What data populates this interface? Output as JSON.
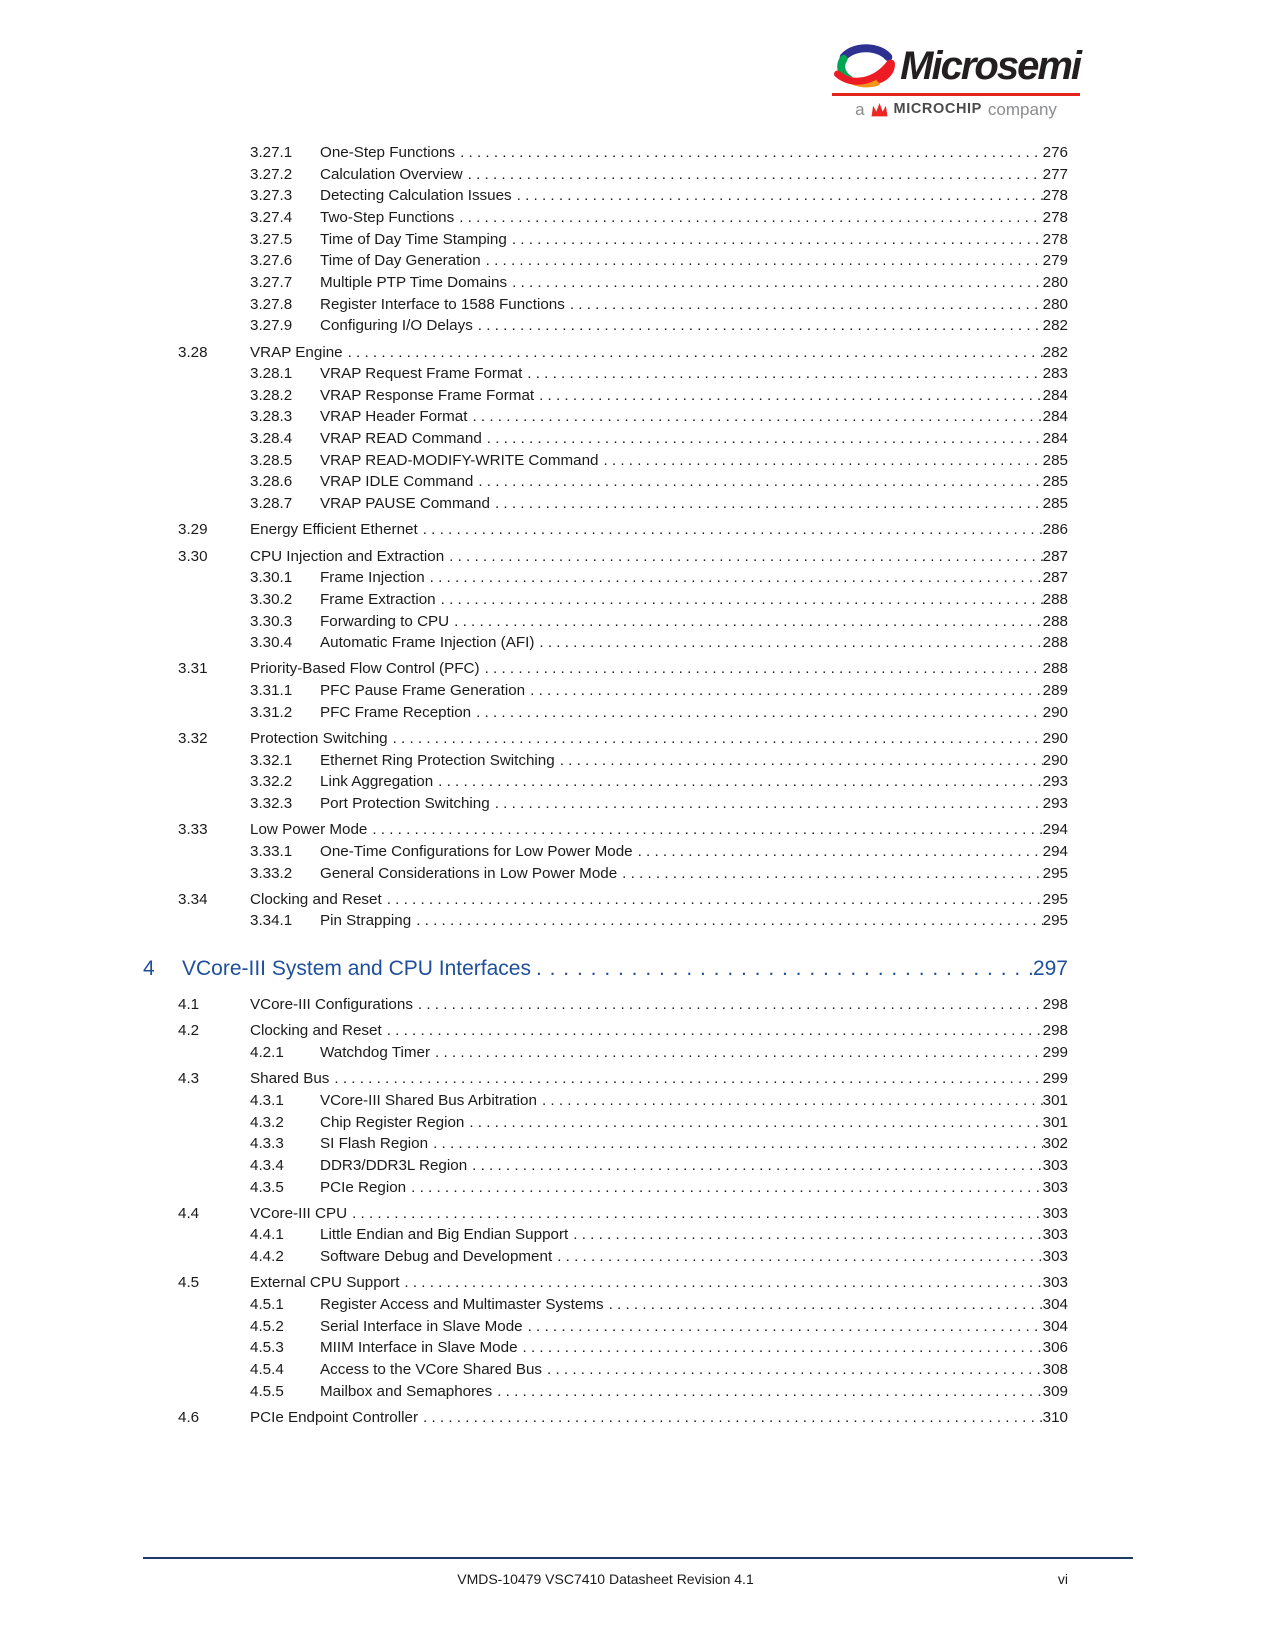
{
  "header": {
    "brand": "Microsemi",
    "tagline_prefix": "a",
    "tagline_brand": "MICROCHIP",
    "tagline_suffix": "company",
    "accent_red": "#E1251B",
    "heading_blue": "#1E4F9C"
  },
  "toc": {
    "entries": [
      {
        "level": 3,
        "number": "3.27.1",
        "title": "One-Step Functions",
        "page": "276"
      },
      {
        "level": 3,
        "number": "3.27.2",
        "title": "Calculation Overview",
        "page": "277"
      },
      {
        "level": 3,
        "number": "3.27.3",
        "title": "Detecting Calculation Issues",
        "page": "278"
      },
      {
        "level": 3,
        "number": "3.27.4",
        "title": "Two-Step Functions",
        "page": "278"
      },
      {
        "level": 3,
        "number": "3.27.5",
        "title": "Time of Day Time Stamping",
        "page": "278"
      },
      {
        "level": 3,
        "number": "3.27.6",
        "title": "Time of Day Generation",
        "page": "279"
      },
      {
        "level": 3,
        "number": "3.27.7",
        "title": "Multiple PTP Time Domains",
        "page": "280"
      },
      {
        "level": 3,
        "number": "3.27.8",
        "title": "Register Interface to 1588 Functions",
        "page": "280"
      },
      {
        "level": 3,
        "number": "3.27.9",
        "title": "Configuring I/O Delays",
        "page": "282"
      },
      {
        "level": 2,
        "number": "3.28",
        "title": "VRAP Engine",
        "page": "282"
      },
      {
        "level": 3,
        "number": "3.28.1",
        "title": "VRAP Request Frame Format",
        "page": "283"
      },
      {
        "level": 3,
        "number": "3.28.2",
        "title": "VRAP Response Frame Format",
        "page": "284"
      },
      {
        "level": 3,
        "number": "3.28.3",
        "title": "VRAP Header Format",
        "page": "284"
      },
      {
        "level": 3,
        "number": "3.28.4",
        "title": "VRAP READ Command",
        "page": "284"
      },
      {
        "level": 3,
        "number": "3.28.5",
        "title": "VRAP READ-MODIFY-WRITE Command",
        "page": "285"
      },
      {
        "level": 3,
        "number": "3.28.6",
        "title": "VRAP IDLE Command",
        "page": "285"
      },
      {
        "level": 3,
        "number": "3.28.7",
        "title": "VRAP PAUSE Command",
        "page": "285"
      },
      {
        "level": 2,
        "number": "3.29",
        "title": "Energy Efficient Ethernet",
        "page": "286"
      },
      {
        "level": 2,
        "number": "3.30",
        "title": "CPU Injection and Extraction",
        "page": "287"
      },
      {
        "level": 3,
        "number": "3.30.1",
        "title": "Frame Injection",
        "page": "287"
      },
      {
        "level": 3,
        "number": "3.30.2",
        "title": "Frame Extraction",
        "page": "288"
      },
      {
        "level": 3,
        "number": "3.30.3",
        "title": "Forwarding to CPU",
        "page": "288"
      },
      {
        "level": 3,
        "number": "3.30.4",
        "title": "Automatic Frame Injection (AFI)",
        "page": "288"
      },
      {
        "level": 2,
        "number": "3.31",
        "title": "Priority-Based Flow Control (PFC)",
        "page": "288"
      },
      {
        "level": 3,
        "number": "3.31.1",
        "title": "PFC Pause Frame Generation",
        "page": "289"
      },
      {
        "level": 3,
        "number": "3.31.2",
        "title": "PFC Frame Reception",
        "page": "290"
      },
      {
        "level": 2,
        "number": "3.32",
        "title": "Protection Switching",
        "page": "290"
      },
      {
        "level": 3,
        "number": "3.32.1",
        "title": "Ethernet Ring Protection Switching",
        "page": "290"
      },
      {
        "level": 3,
        "number": "3.32.2",
        "title": "Link Aggregation",
        "page": "293"
      },
      {
        "level": 3,
        "number": "3.32.3",
        "title": "Port Protection Switching",
        "page": "293"
      },
      {
        "level": 2,
        "number": "3.33",
        "title": "Low Power Mode",
        "page": "294"
      },
      {
        "level": 3,
        "number": "3.33.1",
        "title": "One-Time Configurations for Low Power Mode",
        "page": "294"
      },
      {
        "level": 3,
        "number": "3.33.2",
        "title": "General Considerations in Low Power Mode",
        "page": "295"
      },
      {
        "level": 2,
        "number": "3.34",
        "title": "Clocking and Reset",
        "page": "295"
      },
      {
        "level": 3,
        "number": "3.34.1",
        "title": "Pin Strapping",
        "page": "295"
      },
      {
        "level": 1,
        "number": "4",
        "title": "VCore-III System and CPU Interfaces",
        "page": "297"
      },
      {
        "level": 2,
        "number": "4.1",
        "title": "VCore-III Configurations",
        "page": "298"
      },
      {
        "level": 2,
        "number": "4.2",
        "title": "Clocking and Reset",
        "page": "298"
      },
      {
        "level": 3,
        "number": "4.2.1",
        "title": "Watchdog Timer",
        "page": "299"
      },
      {
        "level": 2,
        "number": "4.3",
        "title": "Shared Bus",
        "page": "299"
      },
      {
        "level": 3,
        "number": "4.3.1",
        "title": "VCore-III Shared Bus Arbitration",
        "page": "301"
      },
      {
        "level": 3,
        "number": "4.3.2",
        "title": "Chip Register Region",
        "page": "301"
      },
      {
        "level": 3,
        "number": "4.3.3",
        "title": "SI Flash Region",
        "page": "302"
      },
      {
        "level": 3,
        "number": "4.3.4",
        "title": "DDR3/DDR3L Region",
        "page": "303"
      },
      {
        "level": 3,
        "number": "4.3.5",
        "title": "PCIe Region",
        "page": "303"
      },
      {
        "level": 2,
        "number": "4.4",
        "title": "VCore-III CPU",
        "page": "303"
      },
      {
        "level": 3,
        "number": "4.4.1",
        "title": "Little Endian and Big Endian Support",
        "page": "303"
      },
      {
        "level": 3,
        "number": "4.4.2",
        "title": "Software Debug and Development",
        "page": "303"
      },
      {
        "level": 2,
        "number": "4.5",
        "title": "External CPU Support",
        "page": "303"
      },
      {
        "level": 3,
        "number": "4.5.1",
        "title": "Register Access and Multimaster Systems",
        "page": "304"
      },
      {
        "level": 3,
        "number": "4.5.2",
        "title": "Serial Interface in Slave Mode",
        "page": "304"
      },
      {
        "level": 3,
        "number": "4.5.3",
        "title": "MIIM Interface in Slave Mode",
        "page": "306"
      },
      {
        "level": 3,
        "number": "4.5.4",
        "title": "Access to the VCore Shared Bus",
        "page": "308"
      },
      {
        "level": 3,
        "number": "4.5.5",
        "title": "Mailbox and Semaphores",
        "page": "309"
      },
      {
        "level": 2,
        "number": "4.6",
        "title": "PCIe Endpoint Controller",
        "page": "310"
      }
    ]
  },
  "footer": {
    "doc_title": "VMDS-10479 VSC7410 Datasheet Revision 4.1",
    "page_label": "vi"
  }
}
